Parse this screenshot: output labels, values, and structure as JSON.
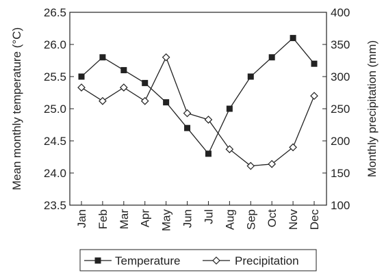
{
  "chart_data": {
    "type": "line",
    "categories": [
      "Jan",
      "Feb",
      "Mar",
      "Apr",
      "May",
      "Jun",
      "Jul",
      "Aug",
      "Sep",
      "Oct",
      "Nov",
      "Dec"
    ],
    "series": [
      {
        "name": "Temperature",
        "axis": "left",
        "marker": "filled-square",
        "values": [
          25.5,
          25.8,
          25.6,
          25.4,
          25.1,
          24.7,
          24.3,
          25.0,
          25.5,
          25.8,
          26.1,
          25.7
        ]
      },
      {
        "name": "Precipitation",
        "axis": "right",
        "marker": "open-diamond",
        "values": [
          283,
          262,
          283,
          262,
          330,
          243,
          233,
          187,
          161,
          164,
          190,
          270
        ]
      }
    ],
    "ylabel_left": "Mean monthly temperature (°C)",
    "ylabel_right": "Monthly precipitation (mm)",
    "xlabel": "",
    "ylim_left": [
      23.5,
      26.5
    ],
    "ylim_right": [
      100,
      400
    ],
    "yticks_left": [
      "23.5",
      "24.0",
      "24.5",
      "25.0",
      "25.5",
      "26.0",
      "26.5"
    ],
    "yticks_right": [
      "100",
      "150",
      "200",
      "250",
      "300",
      "350",
      "400"
    ],
    "grid": false,
    "legend": "bottom"
  }
}
